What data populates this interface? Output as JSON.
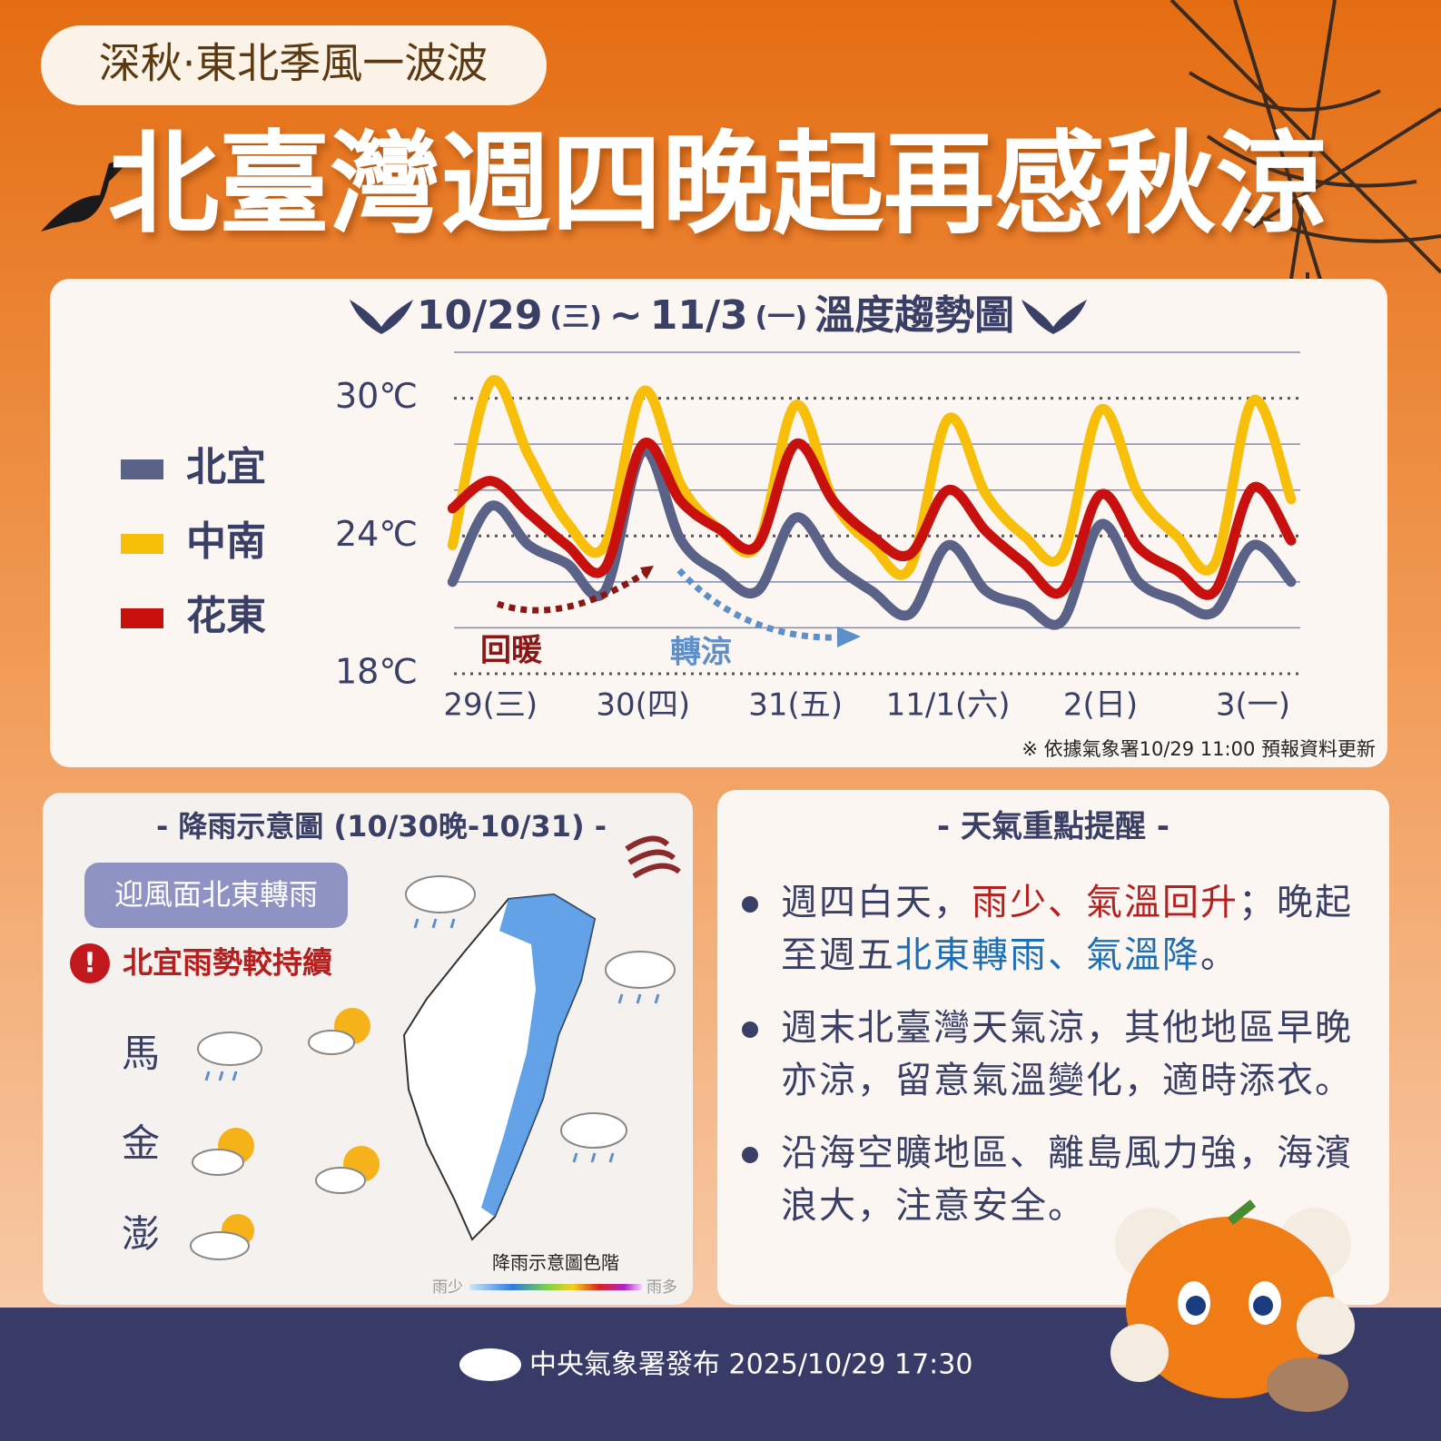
{
  "header": {
    "tag": "深秋·東北季風一波波",
    "headline": "北臺灣週四晚起再感秋涼"
  },
  "chart_data": {
    "type": "line",
    "title": [
      "10/29",
      "(三)",
      "~",
      "11/3",
      "(一)",
      "溫度趨勢圖"
    ],
    "x": [
      -0.25,
      0,
      0.25,
      0.5,
      0.75,
      1,
      1.25,
      1.5,
      1.75,
      2,
      2.25,
      2.5,
      2.75,
      3,
      3.25,
      3.5,
      3.75,
      4,
      4.25,
      4.5,
      4.75,
      5,
      5.25
    ],
    "xlim": [
      -0.24,
      5.31
    ],
    "xticks": [
      {
        "value": 0,
        "label": "29(三)"
      },
      {
        "value": 1,
        "label": "30(四)"
      },
      {
        "value": 2,
        "label": "31(五)"
      },
      {
        "value": 3,
        "label": "11/1(六)"
      },
      {
        "value": 4,
        "label": "2(日)"
      },
      {
        "value": 5,
        "label": "3(一)"
      }
    ],
    "ylim": [
      18,
      32
    ],
    "yticks": [
      {
        "value": 18,
        "label": "18℃"
      },
      {
        "value": 24,
        "label": "24℃"
      },
      {
        "value": 30,
        "label": "30℃"
      }
    ],
    "minor_yticks": [
      20,
      22,
      26,
      28,
      32
    ],
    "grid": true,
    "legend": "left",
    "series": [
      {
        "name": "北宜",
        "color": "#5a6288",
        "values": [
          22.0,
          25.3,
          23.6,
          22.8,
          21.6,
          27.7,
          23.8,
          22.4,
          21.6,
          24.8,
          22.8,
          21.6,
          20.6,
          23.6,
          21.6,
          21.0,
          20.3,
          24.5,
          22.0,
          21.2,
          20.7,
          23.6,
          22.0
        ]
      },
      {
        "name": "中南",
        "color": "#f7be0a",
        "values": [
          23.6,
          30.7,
          27.5,
          24.6,
          23.6,
          30.3,
          26.2,
          24.3,
          23.6,
          29.7,
          25.5,
          23.6,
          22.6,
          29.1,
          25.8,
          24.0,
          23.2,
          29.5,
          25.8,
          24.0,
          22.8,
          29.9,
          25.6
        ]
      },
      {
        "name": "花東",
        "color": "#c8100f",
        "values": [
          25.2,
          26.4,
          25.0,
          23.6,
          22.6,
          28.0,
          25.5,
          24.3,
          23.6,
          28.0,
          25.5,
          24.0,
          23.2,
          26.0,
          24.2,
          22.8,
          21.6,
          25.8,
          23.5,
          22.5,
          21.6,
          26.1,
          23.8
        ]
      }
    ],
    "annotations": [
      "回暖",
      "轉涼"
    ],
    "note": "※ 依據氣象署10/29 11:00 預報資料更新"
  },
  "rain": {
    "title": "- 降雨示意圖 (10/30晚-10/31) -",
    "badge": "迎風面北東轉雨",
    "alert": "北宜雨勢較持續",
    "islands": [
      "馬",
      "金",
      "澎"
    ],
    "scale_title": "降雨示意圖色階",
    "scale_low": "雨少",
    "scale_high": "雨多"
  },
  "tips": {
    "title": "- 天氣重點提醒 -",
    "items": [
      [
        "週四白天，",
        "雨少、氣溫回升",
        "；晚起至週五",
        "北東轉雨、氣溫降",
        "。"
      ],
      [
        "週末北臺灣天氣涼，其他地區早晚亦涼，留意氣溫變化，適時添衣。"
      ],
      [
        "沿海空曠地區、離島風力強，海濱浪大，注意安全。"
      ]
    ]
  },
  "footer": "中央氣象署發布 2025/10/29 17:30"
}
